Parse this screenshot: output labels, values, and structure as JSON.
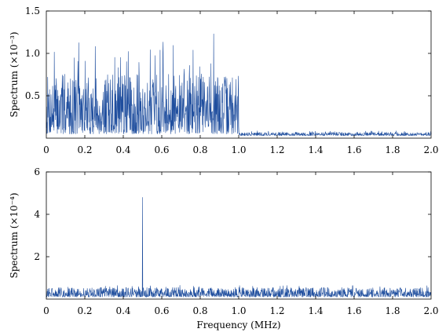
{
  "chart_data": [
    {
      "type": "line",
      "title": "",
      "xlabel": "",
      "ylabel": "Spectrum (×10⁻³)",
      "xlim": [
        0,
        2.0
      ],
      "ylim": [
        0,
        1.5
      ],
      "x_ticks": [
        "0",
        "0.2",
        "0.4",
        "0.6",
        "0.8",
        "1.0",
        "1.2",
        "1.4",
        "1.6",
        "1.8",
        "2.0"
      ],
      "x_tick_values": [
        0,
        0.2,
        0.4,
        0.6,
        0.8,
        1.0,
        1.2,
        1.4,
        1.6,
        1.8,
        2.0
      ],
      "y_ticks": [
        "0.5",
        "1.0",
        "1.5"
      ],
      "y_tick_values": [
        0.5,
        1.0,
        1.5
      ],
      "grid": false,
      "color": "#1f4e9e",
      "series": [
        {
          "segments": [
            {
              "x_start": 0.0,
              "x_end": 1.0,
              "baseline": 0.05,
              "typical_peak": 0.75,
              "max_peak": 1.23,
              "max_peak_at": 0.87
            },
            {
              "x_start": 1.0,
              "x_end": 2.0,
              "baseline": 0.03,
              "typical_peak": 0.07,
              "max_peak": 0.09
            }
          ]
        }
      ]
    },
    {
      "type": "line",
      "title": "",
      "xlabel": "Frequency (MHz)",
      "ylabel": "Spectrum (×10⁻⁴)",
      "xlim": [
        0,
        2.0
      ],
      "ylim": [
        0,
        6
      ],
      "x_ticks": [
        "0",
        "0.2",
        "0.4",
        "0.6",
        "0.8",
        "1.0",
        "1.2",
        "1.4",
        "1.6",
        "1.8",
        "2.0"
      ],
      "x_tick_values": [
        0,
        0.2,
        0.4,
        0.6,
        0.8,
        1.0,
        1.2,
        1.4,
        1.6,
        1.8,
        2.0
      ],
      "y_ticks": [
        "2",
        "4",
        "6"
      ],
      "y_tick_values": [
        2,
        4,
        6
      ],
      "grid": false,
      "color": "#1f4e9e",
      "series": [
        {
          "segments": [
            {
              "x_start": 0.0,
              "x_end": 2.0,
              "baseline": 0.1,
              "typical_peak": 0.55,
              "max_peak": 0.7
            }
          ],
          "spike": {
            "x": 0.5,
            "y": 4.8
          }
        }
      ]
    }
  ]
}
